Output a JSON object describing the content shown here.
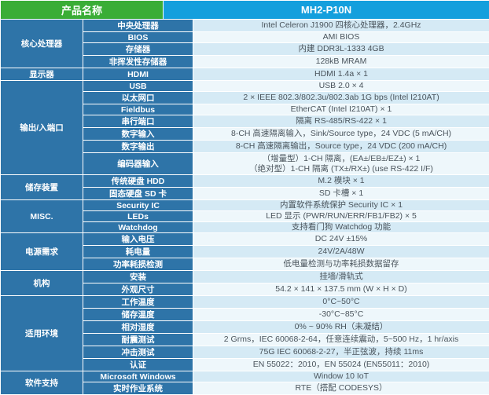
{
  "header": {
    "product_label": "产品名称",
    "model": "MH2-P10N"
  },
  "colors": {
    "header_left_bg": "#3aad36",
    "header_right_bg": "#149fdd",
    "label_bg": "#2e74a8",
    "stripe_blue": "#d5eaf5",
    "stripe_white": "#eef7fb",
    "value_text": "#4a545c"
  },
  "sections": [
    {
      "category": "核心处理器",
      "rows": [
        {
          "label": "中央处理器",
          "value": "Intel Celeron J1900 四核心处理器，2.4GHz"
        },
        {
          "label": "BIOS",
          "value": "AMI BIOS"
        },
        {
          "label": "存储器",
          "value": "内建 DDR3L-1333 4GB"
        },
        {
          "label": "非挥发性存储器",
          "value": "128kB MRAM"
        }
      ]
    },
    {
      "category": "显示器",
      "rows": [
        {
          "label": "HDMI",
          "value": "HDMI 1.4a × 1"
        }
      ]
    },
    {
      "category": "输出/入端口",
      "rows": [
        {
          "label": "USB",
          "value": "USB 2.0 × 4"
        },
        {
          "label": "以太网口",
          "value": "2 × IEEE 802.3/802.3u/802.3ab 1G bps (Intel I210AT)"
        },
        {
          "label": "Fieldbus",
          "value": "EtherCAT (Intel I210AT) × 1"
        },
        {
          "label": "串行端口",
          "value": "隔离 RS-485/RS-422 × 1"
        },
        {
          "label": "数字输入",
          "value": "8-CH 高速隔离输入，Sink/Source type，24 VDC (5 mA/CH)"
        },
        {
          "label": "数字输出",
          "value": "8-CH 高速隔离输出，Source type，24 VDC (200 mA/CH)"
        },
        {
          "label": "编码器输入",
          "lines": [
            "（增量型）1-CH 隔离，(EA±/EB±/EZ±) × 1",
            "（绝对型）1-CH 隔离 (TX±/RX±) (use RS-422 I/F)"
          ]
        }
      ]
    },
    {
      "category": "储存装置",
      "rows": [
        {
          "label": "传统硬盘 HDD",
          "value": "M.2 模块 × 1"
        },
        {
          "label": "固态硬盘 SD 卡",
          "value": "SD 卡槽 × 1"
        }
      ]
    },
    {
      "category": "MISC.",
      "rows": [
        {
          "label": "Security IC",
          "value": "内置软件系统保护 Security IC × 1"
        },
        {
          "label": "LEDs",
          "value": "LED 显示 (PWR/RUN/ERR/FB1/FB2) × 5"
        },
        {
          "label": "Watchdog",
          "value": "支持看门狗 Watchdog 功能"
        }
      ]
    },
    {
      "category": "电源需求",
      "rows": [
        {
          "label": "输入电压",
          "value": "DC 24V ±15%"
        },
        {
          "label": "耗电量",
          "value": "24V/2A/48W"
        },
        {
          "label": "功率耗损检测",
          "value": "低电量检测与功率耗损数据留存"
        }
      ]
    },
    {
      "category": "机构",
      "rows": [
        {
          "label": "安装",
          "value": "挂墙/滑轨式"
        },
        {
          "label": "外观尺寸",
          "value": "54.2 × 141 × 137.5 mm (W × H × D)"
        }
      ]
    },
    {
      "category": "适用环境",
      "rows": [
        {
          "label": "工作温度",
          "value": "0°C~50°C"
        },
        {
          "label": "储存温度",
          "value": "-30°C~85°C"
        },
        {
          "label": "相对湿度",
          "value": "0% ~ 90% RH（未凝结）"
        },
        {
          "label": "耐震测试",
          "value": "2 Grms，IEC 60068-2-64，任意连续震动，5~500 Hz，1 hr/axis"
        },
        {
          "label": "冲击测试",
          "value": "75G IEC 60068-2-27，半正弦波，持续 11ms"
        },
        {
          "label": "认证",
          "value": "EN 55022：2010，EN 55024 (EN55011：2010)"
        }
      ]
    },
    {
      "category": "软件支持",
      "rows": [
        {
          "label": "Microsoft Windows",
          "value": "Window 10 IoT"
        },
        {
          "label": "实时作业系统",
          "value": "RTE（搭配 CODESYS）"
        }
      ]
    }
  ]
}
